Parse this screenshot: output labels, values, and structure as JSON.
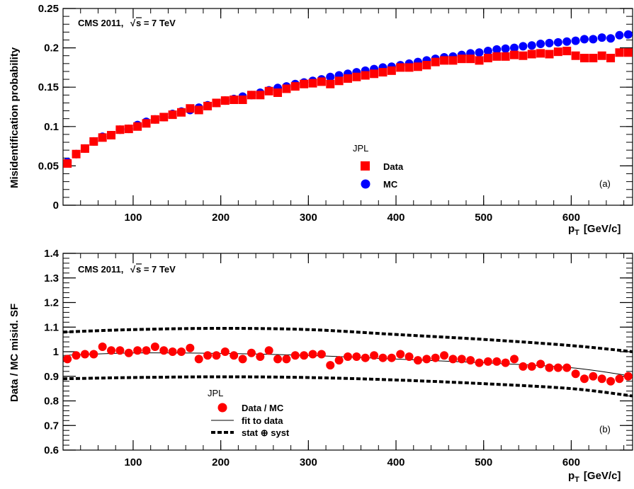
{
  "chart_data": [
    {
      "type": "scatter",
      "panel_tag": "(a)",
      "experiment_label": "CMS 2011,",
      "energy_label": "s = 7 TeV",
      "xlabel": "p",
      "xlabel_sub": "T",
      "xlabel_unit": "[GeV/c]",
      "ylabel": "Misidentification probability",
      "xlim": [
        20,
        670
      ],
      "ylim": [
        0,
        0.25
      ],
      "x_ticks": [
        100,
        200,
        300,
        400,
        500,
        600
      ],
      "x_tick_labels": [
        "100",
        "200",
        "300",
        "400",
        "500",
        "600"
      ],
      "y_ticks": [
        0,
        0.05,
        0.1,
        0.15,
        0.2,
        0.25
      ],
      "y_tick_labels": [
        "0",
        "0.05",
        "0.1",
        "0.15",
        "0.2",
        "0.25"
      ],
      "legend_header": "JPL",
      "legend_position": "center",
      "x": [
        25,
        35,
        45,
        55,
        65,
        75,
        85,
        95,
        105,
        115,
        125,
        135,
        145,
        155,
        165,
        175,
        185,
        195,
        205,
        215,
        225,
        235,
        245,
        255,
        265,
        275,
        285,
        295,
        305,
        315,
        325,
        335,
        345,
        355,
        365,
        375,
        385,
        395,
        405,
        415,
        425,
        435,
        445,
        455,
        465,
        475,
        485,
        495,
        505,
        515,
        525,
        535,
        545,
        555,
        565,
        575,
        585,
        595,
        605,
        615,
        625,
        635,
        645,
        655,
        665
      ],
      "series": [
        {
          "name": "Data",
          "marker": "square",
          "color": "#ff0000",
          "values": [
            0.053,
            0.065,
            0.072,
            0.081,
            0.086,
            0.089,
            0.096,
            0.097,
            0.1,
            0.104,
            0.109,
            0.112,
            0.115,
            0.118,
            0.123,
            0.121,
            0.126,
            0.13,
            0.133,
            0.134,
            0.134,
            0.14,
            0.14,
            0.145,
            0.143,
            0.148,
            0.151,
            0.154,
            0.155,
            0.157,
            0.154,
            0.158,
            0.161,
            0.163,
            0.165,
            0.167,
            0.169,
            0.171,
            0.175,
            0.175,
            0.176,
            0.178,
            0.182,
            0.184,
            0.184,
            0.186,
            0.186,
            0.184,
            0.187,
            0.189,
            0.189,
            0.191,
            0.19,
            0.192,
            0.193,
            0.192,
            0.195,
            0.196,
            0.19,
            0.187,
            0.187,
            0.19,
            0.187,
            0.194,
            0.194
          ]
        },
        {
          "name": "MC",
          "marker": "circle",
          "color": "#0000ff",
          "values": [
            0.055,
            0.065,
            0.072,
            0.081,
            0.087,
            0.089,
            0.096,
            0.097,
            0.102,
            0.106,
            0.109,
            0.112,
            0.116,
            0.119,
            0.121,
            0.124,
            0.127,
            0.13,
            0.133,
            0.135,
            0.138,
            0.14,
            0.143,
            0.146,
            0.149,
            0.151,
            0.154,
            0.156,
            0.158,
            0.16,
            0.163,
            0.165,
            0.167,
            0.169,
            0.171,
            0.173,
            0.175,
            0.176,
            0.178,
            0.18,
            0.182,
            0.184,
            0.186,
            0.188,
            0.189,
            0.191,
            0.193,
            0.194,
            0.196,
            0.198,
            0.199,
            0.2,
            0.202,
            0.203,
            0.205,
            0.206,
            0.207,
            0.208,
            0.209,
            0.211,
            0.211,
            0.213,
            0.212,
            0.216,
            0.217
          ]
        }
      ]
    },
    {
      "type": "scatter",
      "panel_tag": "(b)",
      "experiment_label": "CMS 2011,",
      "energy_label": "s = 7 TeV",
      "xlabel": "p",
      "xlabel_sub": "T",
      "xlabel_unit": "[GeV/c]",
      "ylabel": "Data / MC misid. SF",
      "xlim": [
        20,
        670
      ],
      "ylim": [
        0.6,
        1.4
      ],
      "x_ticks": [
        100,
        200,
        300,
        400,
        500,
        600
      ],
      "x_tick_labels": [
        "100",
        "200",
        "300",
        "400",
        "500",
        "600"
      ],
      "y_ticks": [
        0.6,
        0.7,
        0.8,
        0.9,
        1.0,
        1.1,
        1.2,
        1.3,
        1.4
      ],
      "y_tick_labels": [
        "0.6",
        "0.7",
        "0.8",
        "0.9",
        "1",
        "1.1",
        "1.2",
        "1.3",
        "1.4"
      ],
      "legend_header": "JPL",
      "legend_position": "bottom-left",
      "x": [
        25,
        35,
        45,
        55,
        65,
        75,
        85,
        95,
        105,
        115,
        125,
        135,
        145,
        155,
        165,
        175,
        185,
        195,
        205,
        215,
        225,
        235,
        245,
        255,
        265,
        275,
        285,
        295,
        305,
        315,
        325,
        335,
        345,
        355,
        365,
        375,
        385,
        395,
        405,
        415,
        425,
        435,
        445,
        455,
        465,
        475,
        485,
        495,
        505,
        515,
        525,
        535,
        545,
        555,
        565,
        575,
        585,
        595,
        605,
        615,
        625,
        635,
        645,
        655,
        665
      ],
      "series": [
        {
          "name": "Data / MC",
          "marker": "circle",
          "color": "#ff0000",
          "values": [
            0.97,
            0.985,
            0.99,
            0.99,
            1.02,
            1.005,
            1.005,
            0.995,
            1.005,
            1.005,
            1.02,
            1.005,
            1.0,
            1.0,
            1.015,
            0.97,
            0.985,
            0.985,
            1.0,
            0.985,
            0.97,
            0.995,
            0.98,
            1.005,
            0.97,
            0.97,
            0.985,
            0.985,
            0.99,
            0.99,
            0.945,
            0.965,
            0.98,
            0.98,
            0.975,
            0.985,
            0.975,
            0.975,
            0.99,
            0.98,
            0.965,
            0.97,
            0.975,
            0.985,
            0.97,
            0.97,
            0.965,
            0.955,
            0.96,
            0.96,
            0.955,
            0.97,
            0.94,
            0.94,
            0.95,
            0.935,
            0.935,
            0.935,
            0.91,
            0.89,
            0.9,
            0.89,
            0.88,
            0.89,
            0.9
          ]
        },
        {
          "name": "fit to data",
          "type": "line",
          "style": "solid",
          "color": "#000000",
          "x": [
            20,
            100,
            200,
            300,
            400,
            500,
            600,
            670
          ],
          "values": [
            0.985,
            0.995,
            0.993,
            0.985,
            0.97,
            0.955,
            0.935,
            0.9
          ]
        },
        {
          "name": "stat ⊕ syst",
          "type": "band",
          "style": "dashed",
          "color": "#000000",
          "x": [
            20,
            100,
            200,
            300,
            400,
            500,
            600,
            670
          ],
          "upper": [
            1.08,
            1.09,
            1.095,
            1.09,
            1.07,
            1.05,
            1.025,
            1.0
          ],
          "lower": [
            0.89,
            0.895,
            0.898,
            0.895,
            0.885,
            0.87,
            0.85,
            0.82
          ]
        }
      ]
    }
  ]
}
